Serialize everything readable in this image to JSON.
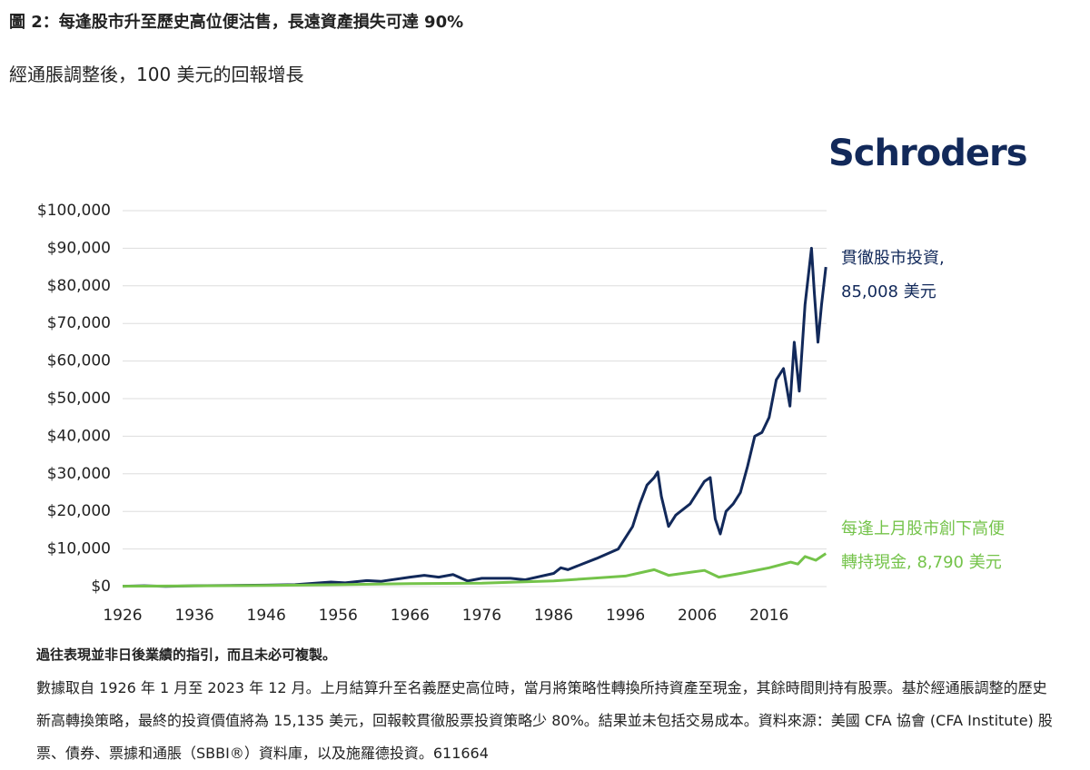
{
  "chart_data": {
    "type": "line",
    "title": "圖 2：每逢股市升至歷史高位便沽售，長遠資產損失可達 90%",
    "subtitle": "經通脹調整後，100 美元的回報增長",
    "brand": "Schroders",
    "xlim": [
      1926,
      2024
    ],
    "xticks": [
      1926,
      1936,
      1946,
      1956,
      1966,
      1976,
      1986,
      1996,
      2006,
      2016
    ],
    "ylim": [
      0,
      100000
    ],
    "yticks": [
      {
        "value": 0,
        "label": "$0"
      },
      {
        "value": 10000,
        "label": "$10,000"
      },
      {
        "value": 20000,
        "label": "$20,000"
      },
      {
        "value": 30000,
        "label": "$30,000"
      },
      {
        "value": 40000,
        "label": "$40,000"
      },
      {
        "value": 50000,
        "label": "$50,000"
      },
      {
        "value": 60000,
        "label": "$60,000"
      },
      {
        "value": 70000,
        "label": "$70,000"
      },
      {
        "value": 80000,
        "label": "$80,000"
      },
      {
        "value": 90000,
        "label": "$90,000"
      },
      {
        "value": 100000,
        "label": "$100,000"
      }
    ],
    "grid": true,
    "series": [
      {
        "label_lines": [
          "貫徹股市投資,",
          "85,008 美元"
        ],
        "color": "#12295a",
        "x": [
          1926,
          1929,
          1932,
          1936,
          1946,
          1950,
          1955,
          1957,
          1960,
          1962,
          1966,
          1968,
          1970,
          1972,
          1974,
          1976,
          1980,
          1982,
          1986,
          1987,
          1988,
          1990,
          1992,
          1995,
          1997,
          1998,
          1999,
          2000,
          2000.5,
          2001,
          2002,
          2003,
          2005,
          2007,
          2007.8,
          2008.5,
          2009.2,
          2010,
          2011,
          2012,
          2013,
          2014,
          2015,
          2016,
          2017,
          2018,
          2018.9,
          2019.5,
          2020.2,
          2021,
          2021.9,
          2022.3,
          2022.8,
          2023.3,
          2023.9
        ],
        "values": [
          100,
          200,
          50,
          200,
          400,
          500,
          1200,
          1000,
          1600,
          1400,
          2500,
          3000,
          2500,
          3200,
          1500,
          2200,
          2200,
          1800,
          3500,
          5000,
          4500,
          6000,
          7500,
          10000,
          16000,
          22000,
          27000,
          29000,
          30500,
          24000,
          16000,
          19000,
          22000,
          28000,
          29000,
          18000,
          14000,
          20000,
          22000,
          25000,
          32000,
          40000,
          41000,
          45000,
          55000,
          58000,
          48000,
          65000,
          52000,
          75000,
          90000,
          78000,
          65000,
          75000,
          85008
        ]
      },
      {
        "label_lines": [
          "每逢上月股市創下高便",
          "轉持現金, 8,790 美元"
        ],
        "color": "#74c34a",
        "x": [
          1926,
          1946,
          1956,
          1966,
          1976,
          1986,
          1996,
          2000,
          2002,
          2007,
          2009,
          2012,
          2016,
          2019,
          2020,
          2021,
          2022.5,
          2023.9
        ],
        "values": [
          100,
          300,
          500,
          800,
          900,
          1500,
          2800,
          4500,
          3000,
          4300,
          2500,
          3500,
          5000,
          6500,
          6000,
          8000,
          7000,
          8790
        ]
      }
    ],
    "footnote_title": "過往表現並非日後業績的指引，而且未必可複製。",
    "footnote": "數據取自 1926 年 1 月至 2023 年 12 月。上月結算升至名義歷史高位時，當月將策略性轉換所持資產至現金，其餘時間則持有股票。基於經通脹調整的歷史新高轉換策略，最終的投資價值將為 15,135 美元，回報較貫徹股票投資策略少 80%。結果並未包括交易成本。資料來源：美國 CFA 協會 (CFA Institute) 股票、債券、票據和通脹（SBBI®）資料庫，以及施羅德投資。611664"
  }
}
